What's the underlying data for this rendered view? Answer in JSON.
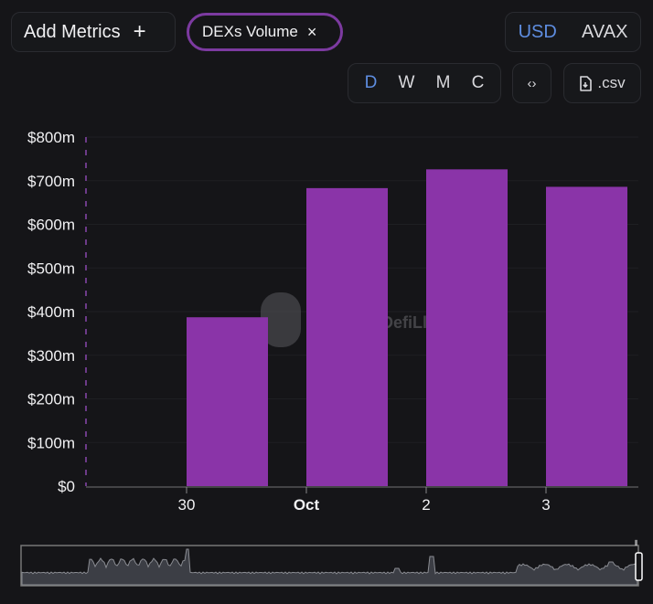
{
  "toolbar": {
    "add_metrics_label": "Add Metrics",
    "add_icon": "+",
    "metric_chip_label": "DEXs Volume",
    "close_icon": "×",
    "currency_options": [
      "USD",
      "AVAX"
    ],
    "currency_selected": "USD",
    "interval_options": [
      "D",
      "W",
      "M",
      "C"
    ],
    "interval_selected": "D",
    "embed_icon": "‹›",
    "csv_label": ".csv"
  },
  "watermark": "DefiLlama",
  "colors": {
    "bar": "#8a34a8",
    "active": "#5e8de0",
    "chip_border": "#7c3aa0"
  },
  "chart_data": {
    "type": "bar",
    "title": "DEXs Volume",
    "xlabel": "",
    "ylabel": "",
    "categories": [
      "30",
      "Oct",
      "2",
      "3"
    ],
    "bold_categories": [
      "Oct"
    ],
    "series": [
      {
        "name": "DEXs Volume",
        "values": [
          387,
          683,
          726,
          686
        ]
      }
    ],
    "units": "USD millions",
    "yticks": [
      "$0",
      "$100m",
      "$200m",
      "$300m",
      "$400m",
      "$500m",
      "$600m",
      "$700m",
      "$800m"
    ],
    "ylim": [
      0,
      800
    ],
    "grid": true,
    "legend": "none"
  }
}
